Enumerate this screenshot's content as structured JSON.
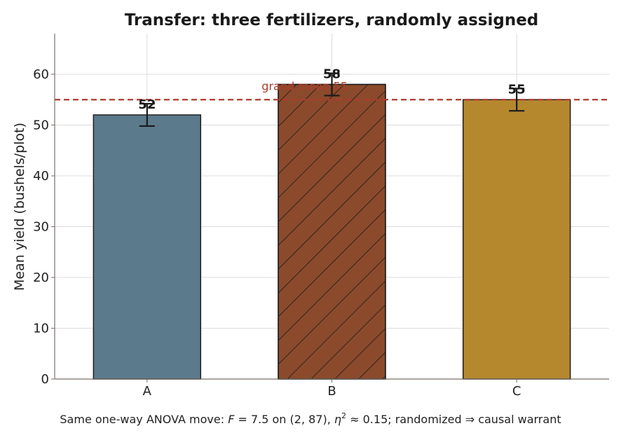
{
  "chart_data": {
    "type": "bar",
    "title": "Transfer: three fertilizers, randomly assigned",
    "xlabel": "",
    "ylabel": "Mean yield (bushels/plot)",
    "categories": [
      "A",
      "B",
      "C"
    ],
    "values": [
      52,
      58,
      55
    ],
    "errors": [
      2.2,
      2.2,
      2.2
    ],
    "value_labels": [
      "52",
      "58",
      "55"
    ],
    "colors": [
      "#5b7a8c",
      "#8b4a2b",
      "#b5882e"
    ],
    "hatch": [
      false,
      true,
      false
    ],
    "ylim": [
      0,
      68
    ],
    "yticks": [
      0,
      10,
      20,
      30,
      40,
      50,
      60
    ],
    "grid": true,
    "reference_line": {
      "value": 55,
      "label": "grand mean 55",
      "color": "#b03a2e"
    },
    "caption": {
      "prefix": "Same one-way ANOVA move: ",
      "f_symbol": "F",
      "f_value": " = 7.5 on (2, 87), ",
      "eta_symbol": "η",
      "eta_power": "2",
      "eta_value": " ≈ 0.15; randomized ⇒ causal warrant"
    }
  }
}
